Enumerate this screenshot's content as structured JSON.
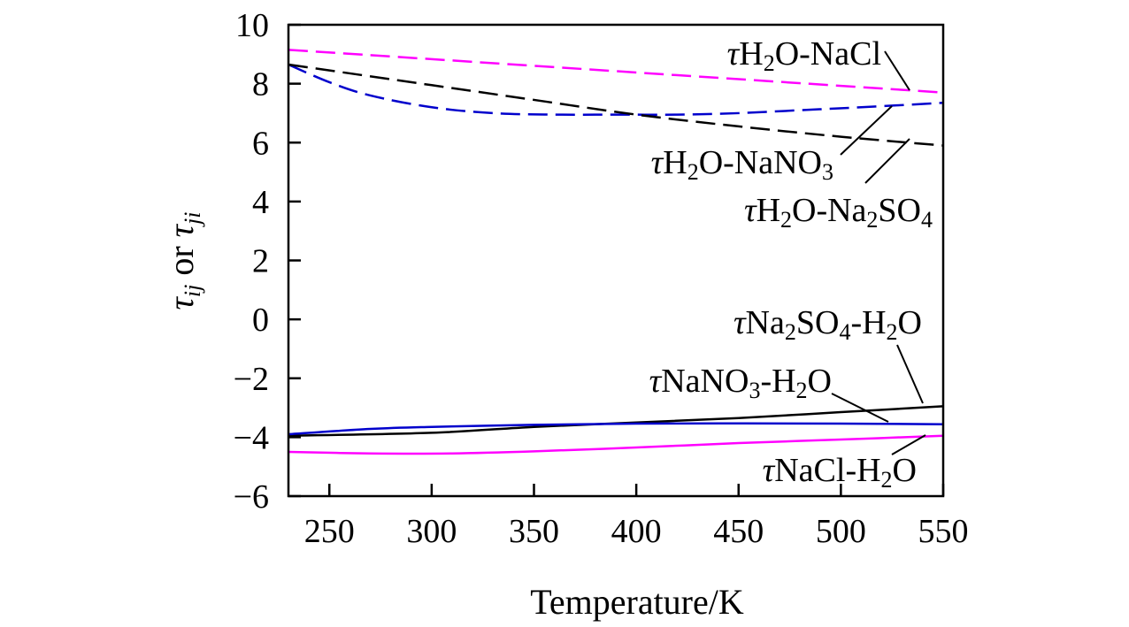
{
  "chart_data": {
    "type": "line",
    "xlabel": "Temperature/K",
    "ylabel_parts": {
      "tau1": "τ",
      "sub1": "ij",
      "or": " or ",
      "tau2": "τ",
      "sub2": "ji"
    },
    "xlim": [
      230,
      550
    ],
    "ylim": [
      -6,
      10
    ],
    "x_ticks": [
      250,
      300,
      350,
      400,
      450,
      500,
      550
    ],
    "x_tick_labels": [
      "250",
      "300",
      "350",
      "400",
      "450",
      "500",
      "550"
    ],
    "y_ticks": [
      -6,
      -4,
      -2,
      0,
      2,
      4,
      6,
      8,
      10
    ],
    "y_tick_labels": [
      "−6",
      "−4",
      "−2",
      "0",
      "2",
      "4",
      "6",
      "8",
      "10"
    ],
    "grid": false,
    "series": [
      {
        "id": "h2o_nacl",
        "color": "#ff00ff",
        "dashed": true,
        "label_parts": [
          "τ",
          "H",
          "2",
          "O-NaCl"
        ],
        "x": [
          230,
          550
        ],
        "y": [
          9.15,
          7.7
        ]
      },
      {
        "id": "h2o_nano3",
        "color": "#0000cc",
        "dashed": true,
        "label_parts": [
          "τ",
          "H",
          "2",
          "O-NaNO",
          "3"
        ],
        "x": [
          230,
          250,
          270,
          300,
          330,
          360,
          390,
          420,
          450,
          480,
          510,
          550
        ],
        "y": [
          8.65,
          8.05,
          7.6,
          7.2,
          7.0,
          6.95,
          6.95,
          6.95,
          7.0,
          7.1,
          7.2,
          7.35
        ]
      },
      {
        "id": "h2o_na2so4",
        "color": "#000000",
        "dashed": true,
        "label_parts": [
          "τ",
          "H",
          "2",
          "O-Na",
          "2",
          "SO",
          "4"
        ],
        "x": [
          230,
          300,
          350,
          400,
          450,
          500,
          550
        ],
        "y": [
          8.65,
          7.95,
          7.45,
          6.95,
          6.55,
          6.2,
          5.9
        ]
      },
      {
        "id": "na2so4_h2o",
        "color": "#000000",
        "dashed": false,
        "label_parts": [
          "τ",
          "Na",
          "2",
          "SO",
          "4",
          "-H",
          "2",
          "O"
        ],
        "x": [
          230,
          300,
          350,
          400,
          450,
          500,
          550
        ],
        "y": [
          -3.95,
          -3.85,
          -3.65,
          -3.5,
          -3.35,
          -3.15,
          -2.95
        ]
      },
      {
        "id": "nano3_h2o",
        "color": "#0000cc",
        "dashed": false,
        "label_parts": [
          "τ",
          "NaNO",
          "3",
          "-H",
          "2",
          "O"
        ],
        "x": [
          230,
          270,
          300,
          350,
          400,
          450,
          500,
          550
        ],
        "y": [
          -3.9,
          -3.72,
          -3.65,
          -3.58,
          -3.54,
          -3.53,
          -3.54,
          -3.56
        ]
      },
      {
        "id": "nacl_h2o",
        "color": "#ff00ff",
        "dashed": false,
        "label_parts": [
          "τ",
          "NaCl-H",
          "2",
          "O"
        ],
        "x": [
          230,
          270,
          310,
          350,
          400,
          450,
          500,
          550
        ],
        "y": [
          -4.5,
          -4.55,
          -4.55,
          -4.48,
          -4.35,
          -4.2,
          -4.08,
          -3.95
        ]
      }
    ]
  }
}
